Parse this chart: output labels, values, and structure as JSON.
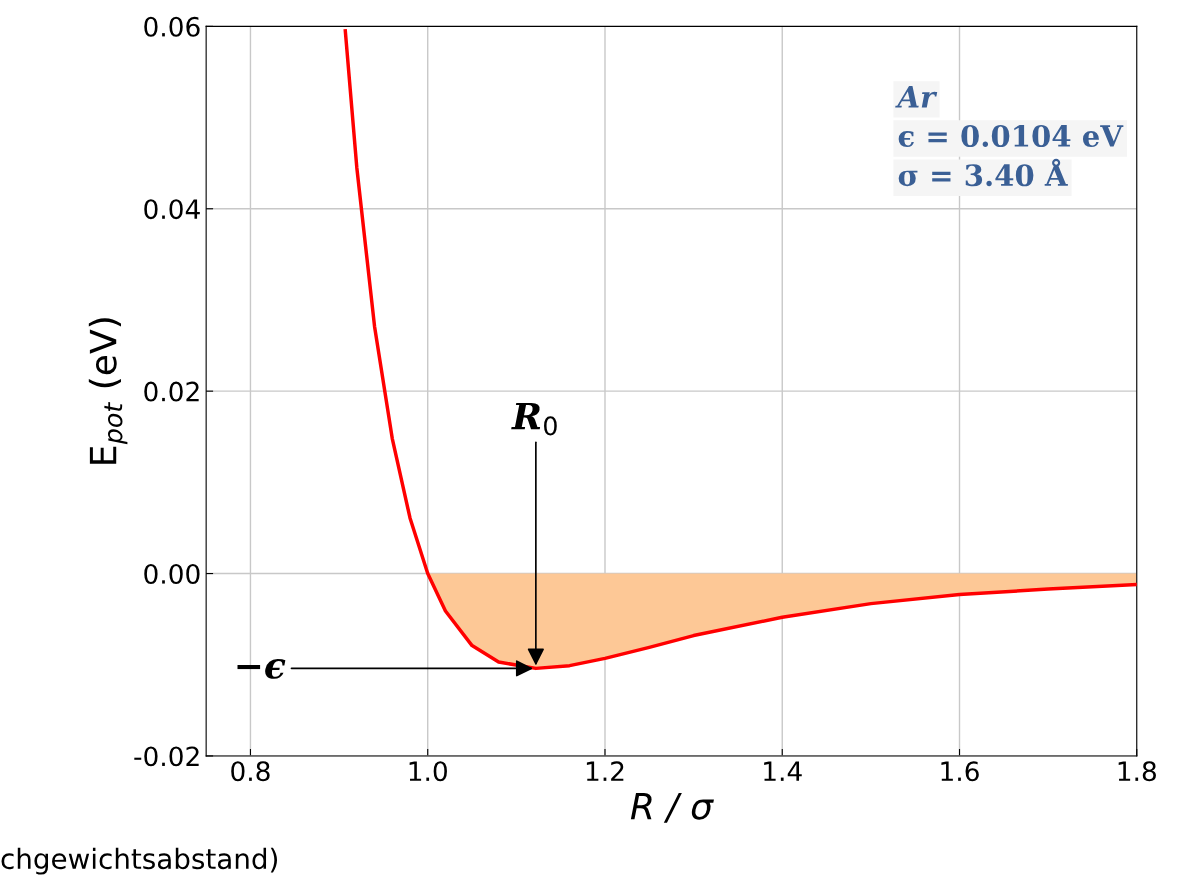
{
  "chart_data": {
    "type": "line",
    "xlabel": "R / σ",
    "ylabel": "E$_{pot}$ (eV)",
    "xlim": [
      0.75,
      1.8
    ],
    "ylim": [
      -0.02,
      0.06
    ],
    "xticks": [
      {
        "value": 0.8,
        "label": "0.8"
      },
      {
        "value": 1.0,
        "label": "1.0"
      },
      {
        "value": 1.2,
        "label": "1.2"
      },
      {
        "value": 1.4,
        "label": "1.4"
      },
      {
        "value": 1.6,
        "label": "1.6"
      },
      {
        "value": 1.8,
        "label": "1.8"
      }
    ],
    "yticks": [
      {
        "value": -0.02,
        "label": "-0.02"
      },
      {
        "value": 0.0,
        "label": "0.00"
      },
      {
        "value": 0.02,
        "label": "0.02"
      },
      {
        "value": 0.04,
        "label": "0.04"
      },
      {
        "value": 0.06,
        "label": "0.06"
      }
    ],
    "grid": true,
    "marker": "none",
    "line_style": "solid",
    "series": [
      {
        "type": "area",
        "color": "#fdc896",
        "x": [
          1.0,
          1.02,
          1.05,
          1.08,
          1.122,
          1.16,
          1.2,
          1.25,
          1.3,
          1.4,
          1.5,
          1.6,
          1.7,
          1.8
        ],
        "values": [
          0.0,
          -0.0041,
          -0.0079,
          -0.0097,
          -0.0104,
          -0.0101,
          -0.0093,
          -0.0081,
          -0.0068,
          -0.0048,
          -0.0033,
          -0.0023,
          -0.0017,
          -0.0012
        ]
      },
      {
        "color": "#ff0000",
        "x": [
          0.907,
          0.92,
          0.94,
          0.96,
          0.98,
          1.0,
          1.02,
          1.05,
          1.08,
          1.122,
          1.16,
          1.2,
          1.25,
          1.3,
          1.4,
          1.5,
          1.6,
          1.7,
          1.8
        ],
        "values": [
          0.0595,
          0.0445,
          0.0271,
          0.0148,
          0.0061,
          0.0,
          -0.0041,
          -0.0079,
          -0.0097,
          -0.0104,
          -0.0101,
          -0.0093,
          -0.0081,
          -0.0068,
          -0.0048,
          -0.0033,
          -0.0023,
          -0.0017,
          -0.0012
        ]
      }
    ],
    "annotations": [
      {
        "text": "R$_{0}$",
        "x": 1.122,
        "y": -0.0104
      },
      {
        "text": "−ϵ",
        "x": 1.122,
        "y": -0.0104
      },
      "Ar",
      "ϵ = 0.0104 eV",
      "σ = 3.40 Å",
      "chgewichtsabstand)"
    ]
  }
}
